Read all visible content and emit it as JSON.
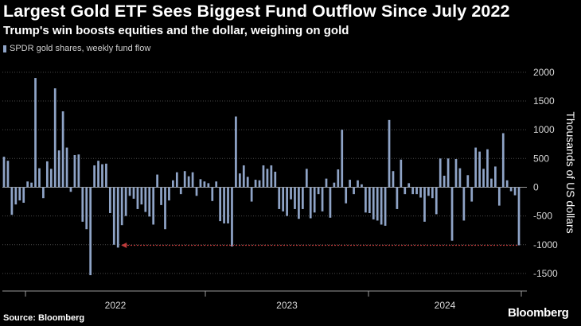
{
  "title": "Largest Gold ETF Sees Biggest Fund Outflow Since July 2022",
  "subtitle": "Trump's win boosts equities and the dollar, weighing on gold",
  "source": "Source: Bloomberg",
  "logo": "Bloomberg",
  "colors": {
    "bar": "#8fa4c7",
    "arrow": "#c03a3a",
    "grid": "#4a4a4a",
    "background": "#000000"
  },
  "chart_data": {
    "type": "bar",
    "legend": [
      "SPDR gold shares, weekly fund flow"
    ],
    "legend_position": "top-left",
    "ylabel": "Thousands of US dollars",
    "xlabel": "",
    "ylim": [
      -1750,
      2150
    ],
    "yticks": [
      -1500,
      -1000,
      -500,
      0,
      500,
      1000,
      1500,
      2000
    ],
    "y_axis_side": "right",
    "grid": "horizontal dotted",
    "x_period_labels": [
      "2022",
      "2023",
      "2024"
    ],
    "annotation": "dotted arrow at the latest -1000 outflow pointing back to the comparable outflow in July 2022",
    "series": [
      {
        "name": "SPDR gold shares, weekly fund flow",
        "values": [
          530,
          460,
          -480,
          -300,
          -230,
          -270,
          100,
          80,
          1900,
          330,
          -190,
          450,
          320,
          1720,
          640,
          1320,
          690,
          -80,
          560,
          570,
          -600,
          -730,
          -1530,
          380,
          460,
          400,
          410,
          -450,
          -1000,
          -1050,
          -660,
          -500,
          -150,
          -200,
          -380,
          -300,
          -430,
          -510,
          -650,
          220,
          -310,
          -730,
          -230,
          120,
          260,
          -120,
          280,
          190,
          260,
          -150,
          140,
          100,
          70,
          -240,
          100,
          -590,
          -630,
          -630,
          -1030,
          1230,
          240,
          380,
          180,
          -250,
          130,
          120,
          380,
          320,
          380,
          270,
          -380,
          -420,
          -500,
          -210,
          -380,
          -550,
          -380,
          320,
          -540,
          -440,
          -120,
          -420,
          150,
          -530,
          80,
          310,
          1000,
          -280,
          130,
          -120,
          120,
          50,
          -440,
          -450,
          -560,
          -580,
          -650,
          -670,
          1170,
          280,
          -380,
          480,
          -120,
          70,
          -120,
          -120,
          -180,
          -600,
          -150,
          -190,
          -470,
          500,
          200,
          500,
          -930,
          490,
          330,
          -580,
          210,
          -250,
          690,
          620,
          320,
          660,
          150,
          360,
          -320,
          940,
          120,
          -70,
          -140,
          -1010
        ]
      }
    ]
  }
}
